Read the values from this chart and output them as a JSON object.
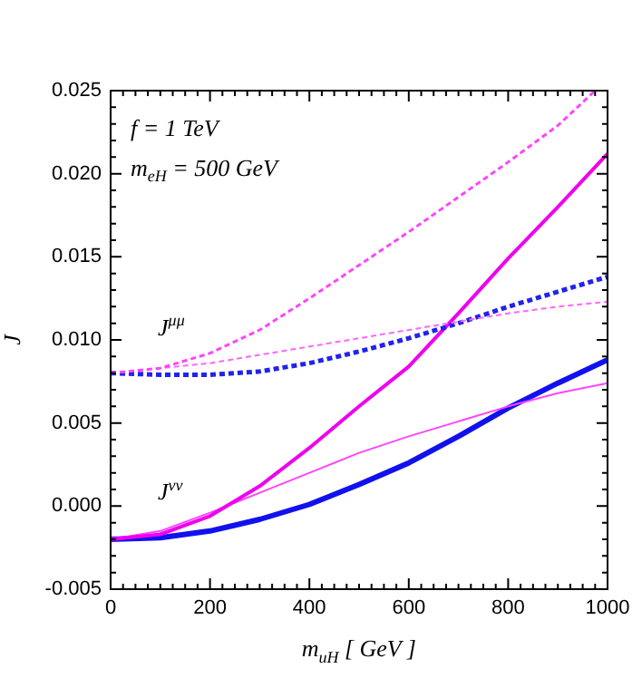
{
  "chart_data": {
    "type": "line",
    "xlabel": "m$_{uH}$ [ GeV ]",
    "ylabel": "J",
    "x": [
      0,
      100,
      200,
      300,
      400,
      500,
      600,
      700,
      800,
      900,
      1000
    ],
    "xlim": [
      0,
      1000
    ],
    "xticks": [
      0,
      200,
      400,
      600,
      800,
      1000
    ],
    "ylim": [
      -0.005,
      0.025
    ],
    "yticks": [
      {
        "value": -0.005,
        "label": "-0.005"
      },
      {
        "value": 0,
        "label": "0.000"
      },
      {
        "value": 0.005,
        "label": "0.005"
      },
      {
        "value": 0.01,
        "label": "0.010"
      },
      {
        "value": 0.015,
        "label": "0.015"
      },
      {
        "value": 0.02,
        "label": "0.020"
      },
      {
        "value": 0.025,
        "label": "0.025"
      }
    ],
    "grid": false,
    "legend": false,
    "marker": "none",
    "series": [
      {
        "color": "#ff44ff",
        "line_style": "dashed",
        "x": [
          0,
          100,
          200,
          300,
          400,
          500,
          600,
          700,
          800,
          900,
          975
        ],
        "values": [
          0.008,
          0.0083,
          0.0092,
          0.0106,
          0.0125,
          0.0145,
          0.0165,
          0.0186,
          0.0207,
          0.0229,
          0.025
        ]
      },
      {
        "color": "#ff66ff",
        "line_style": "dashed",
        "values": [
          0.008,
          0.0083,
          0.0086,
          0.0091,
          0.0096,
          0.0101,
          0.0106,
          0.0111,
          0.0116,
          0.012,
          0.0123
        ]
      },
      {
        "color": "#2222ee",
        "line_style": "dashed",
        "values": [
          0.008,
          0.0079,
          0.0079,
          0.0081,
          0.0086,
          0.0093,
          0.0101,
          0.011,
          0.012,
          0.0129,
          0.0138
        ]
      },
      {
        "color": "#ee00ee",
        "line_style": "solid",
        "values": [
          -0.002,
          -0.0017,
          -0.0006,
          0.0012,
          0.0035,
          0.006,
          0.0084,
          0.0116,
          0.0149,
          0.018,
          0.0212
        ]
      },
      {
        "color": "#ff44ff",
        "line_style": "solid",
        "values": [
          -0.002,
          -0.0015,
          -0.0004,
          0.0008,
          0.002,
          0.0032,
          0.0042,
          0.0051,
          0.006,
          0.0068,
          0.0074
        ]
      },
      {
        "color": "#1111ee",
        "line_style": "solid",
        "values": [
          -0.002,
          -0.0019,
          -0.0015,
          -0.0008,
          0.0001,
          0.0013,
          0.0026,
          0.0042,
          0.0059,
          0.0074,
          0.0088
        ]
      }
    ],
    "annotations": [
      "f = 1 TeV",
      "m$_{eH}$ = 500 GeV",
      "J$^{μμ}$",
      "J$^{νν}$"
    ]
  }
}
